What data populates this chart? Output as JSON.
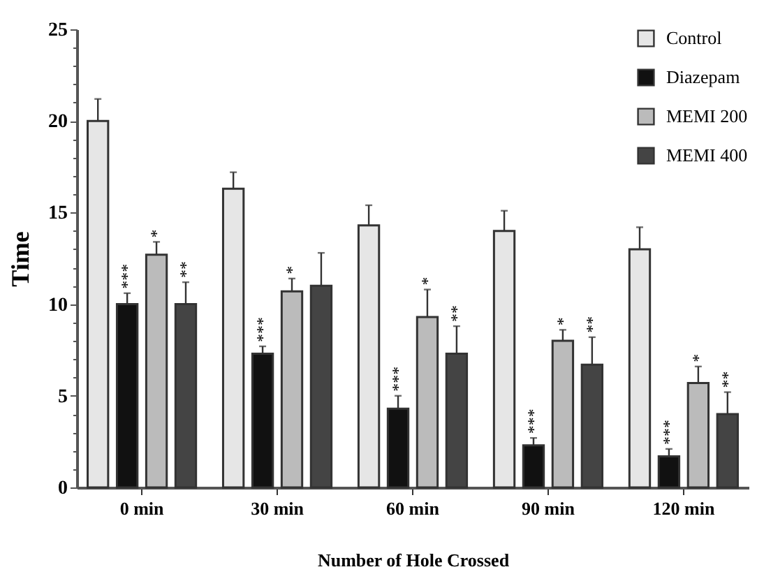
{
  "chart_data": {
    "type": "bar",
    "xlabel": "Number of Hole Crossed",
    "ylabel": "Time",
    "categories": [
      "0 min",
      "30 min",
      "60 min",
      "90 min",
      "120 min"
    ],
    "series": [
      {
        "name": "Control",
        "color": "#e6e6e6",
        "values": [
          20,
          16.3,
          14.3,
          14.0,
          13.0
        ],
        "errors": [
          1.2,
          0.9,
          1.1,
          1.1,
          1.2
        ]
      },
      {
        "name": "Diazepam",
        "color": "#111111",
        "values": [
          10,
          7.3,
          4.3,
          2.3,
          1.7
        ],
        "errors": [
          0.6,
          0.4,
          0.7,
          0.4,
          0.4
        ]
      },
      {
        "name": "MEMI 200",
        "color": "#bbbbbb",
        "values": [
          12.7,
          10.7,
          9.3,
          8.0,
          5.7
        ],
        "errors": [
          0.7,
          0.7,
          1.5,
          0.6,
          0.9
        ]
      },
      {
        "name": "MEMI 400",
        "color": "#444444",
        "values": [
          10,
          11,
          7.3,
          6.7,
          4.0
        ],
        "errors": [
          1.2,
          1.8,
          1.5,
          1.5,
          1.2
        ]
      }
    ],
    "ylim": [
      0,
      25
    ],
    "yticks": [
      0,
      {
        "value": 1,
        "label": null
      },
      {
        "value": 2,
        "label": null
      },
      {
        "value": 3,
        "label": null
      },
      {
        "value": 4,
        "label": null
      },
      5,
      {
        "value": 6,
        "label": null
      },
      {
        "value": 7,
        "label": null
      },
      {
        "value": 8,
        "label": null
      },
      {
        "value": 9,
        "label": null
      },
      10,
      {
        "value": 11,
        "label": null
      },
      {
        "value": 12,
        "label": null
      },
      {
        "value": 13,
        "label": null
      },
      {
        "value": 14,
        "label": null
      },
      15,
      {
        "value": 16,
        "label": null
      },
      {
        "value": 17,
        "label": null
      },
      {
        "value": 18,
        "label": null
      },
      {
        "value": 19,
        "label": null
      },
      20,
      {
        "value": 21,
        "label": null
      },
      {
        "value": 22,
        "label": null
      },
      {
        "value": 23,
        "label": null
      },
      {
        "value": 24,
        "label": null
      },
      25
    ],
    "annotations": [
      {
        "text": "***",
        "x": "0 min",
        "y": 10
      },
      {
        "text": "*",
        "x": "0 min",
        "y": 12.7
      },
      {
        "text": "**",
        "x": "0 min",
        "y": 10
      },
      {
        "text": "***",
        "x": "30 min",
        "y": 7.3
      },
      {
        "text": "*",
        "x": "30 min",
        "y": 10.7
      },
      {
        "text": "***",
        "x": "60 min",
        "y": 4.3
      },
      {
        "text": "*",
        "x": "60 min",
        "y": 9.3
      },
      {
        "text": "**",
        "x": "60 min",
        "y": 7.3
      },
      {
        "text": "***",
        "x": "90 min",
        "y": 2.3
      },
      {
        "text": "*",
        "x": "90 min",
        "y": 8.0
      },
      {
        "text": "**",
        "x": "90 min",
        "y": 6.7
      },
      {
        "text": "***",
        "x": "120 min",
        "y": 1.7
      },
      {
        "text": "*",
        "x": "120 min",
        "y": 5.7
      },
      {
        "text": "**",
        "x": "120 min",
        "y": 4.0
      }
    ],
    "grid": false,
    "legend": "top right"
  }
}
